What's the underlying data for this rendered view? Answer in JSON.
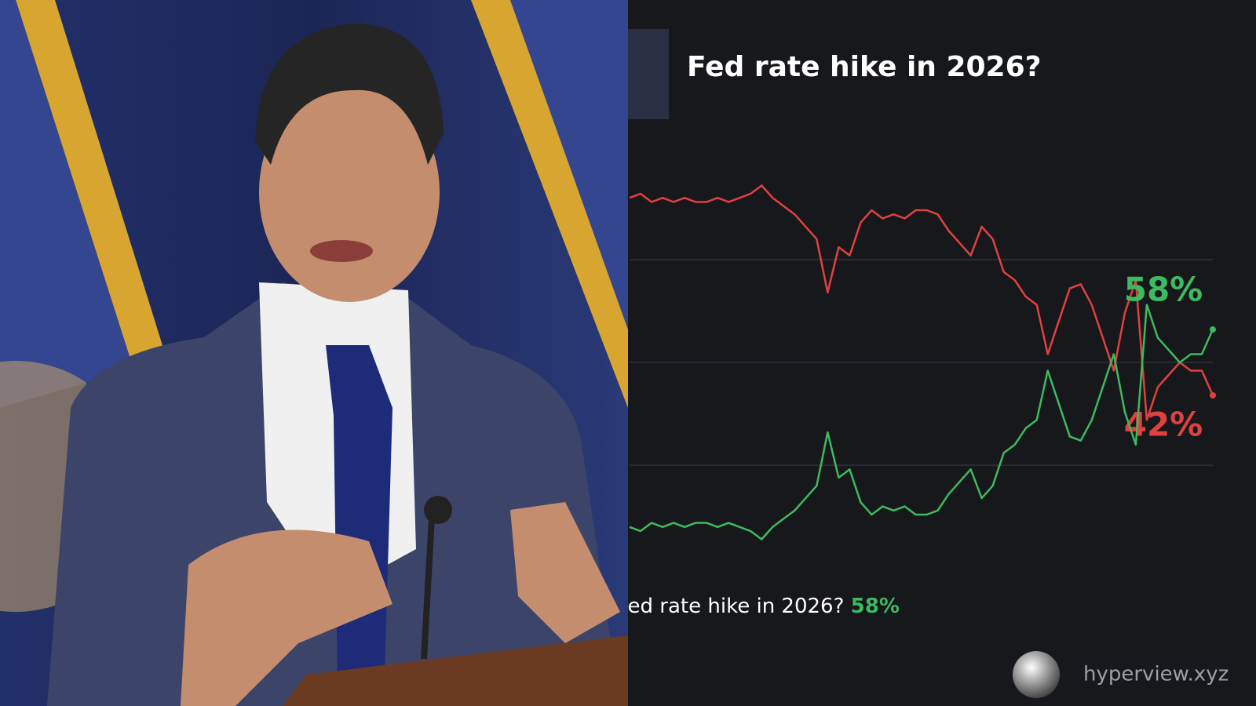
{
  "chart_data": {
    "type": "line",
    "title": "Fed rate hike in 2026?",
    "ylim": [
      5,
      95
    ],
    "yticks": [
      25,
      50,
      75
    ],
    "grid": true,
    "series": [
      {
        "color": "#e0413f",
        "end_label": "42%",
        "values": [
          90,
          91,
          89,
          90,
          89,
          90,
          89,
          89,
          90,
          89,
          90,
          91,
          93,
          90,
          88,
          86,
          83,
          80,
          67,
          78,
          76,
          84,
          87,
          85,
          86,
          85,
          87,
          87,
          86,
          82,
          79,
          76,
          83,
          80,
          72,
          70,
          66,
          64,
          52,
          60,
          68,
          69,
          64,
          56,
          48,
          62,
          70,
          36,
          44,
          47,
          50,
          48,
          48,
          42
        ]
      },
      {
        "color": "#3dba5f",
        "end_label": "58%",
        "values": [
          10,
          9,
          11,
          10,
          11,
          10,
          11,
          11,
          10,
          11,
          10,
          9,
          7,
          10,
          12,
          14,
          17,
          20,
          33,
          22,
          24,
          16,
          13,
          15,
          14,
          15,
          13,
          13,
          14,
          18,
          21,
          24,
          17,
          20,
          28,
          30,
          34,
          36,
          48,
          40,
          32,
          31,
          36,
          44,
          52,
          38,
          30,
          64,
          56,
          53,
          50,
          52,
          52,
          58
        ]
      }
    ]
  },
  "watermark": "hyperview.xyz"
}
